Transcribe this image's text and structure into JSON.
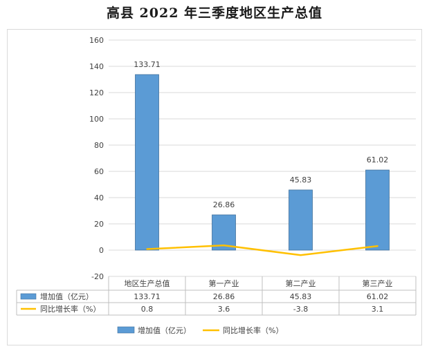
{
  "chart_data": {
    "type": "bar",
    "title": "高县 2022 年三季度地区生产总值",
    "categories": [
      "地区生产总值",
      "第一产业",
      "第二产业",
      "第三产业"
    ],
    "series": [
      {
        "name": "增加值（亿元）",
        "type": "bar",
        "color": "#5b9bd5",
        "values": [
          133.71,
          26.86,
          45.83,
          61.02
        ],
        "labels": [
          "133.71",
          "26.86",
          "45.83",
          "61.02"
        ]
      },
      {
        "name": "同比增长率（%）",
        "type": "line",
        "color": "#ffc000",
        "values": [
          0.8,
          3.6,
          -3.8,
          3.1
        ],
        "labels": [
          "0.8",
          "3.6",
          "-3.8",
          "3.1"
        ]
      }
    ],
    "ylim": [
      -20,
      160
    ],
    "yticks": [
      "160",
      "140",
      "120",
      "100",
      "80",
      "60",
      "40",
      "20",
      "0",
      "-20"
    ],
    "ytick_values": [
      160,
      140,
      120,
      100,
      80,
      60,
      40,
      20,
      0,
      -20
    ],
    "grid": true,
    "legend": "bottom",
    "data_table": true
  }
}
